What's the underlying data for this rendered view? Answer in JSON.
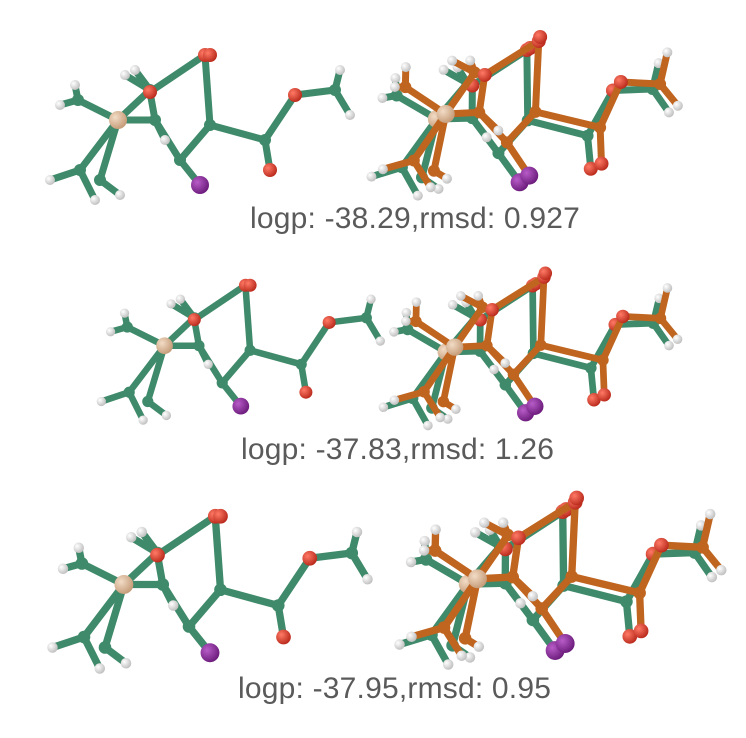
{
  "colors": {
    "carbon": "#3f8a6a",
    "carbon_overlay": "#c0651f",
    "oxygen": "#d63a26",
    "hydrogen": "#e6e6e6",
    "silicon": "#d9b99b",
    "iodine": "#8a2a9a",
    "caption": "#5a5a5a"
  },
  "rows": [
    {
      "caption": "logp: -38.29,rmsd: 0.927"
    },
    {
      "caption": "logp: -37.83,rmsd: 1.26"
    },
    {
      "caption": "logp: -37.95,rmsd: 0.95"
    }
  ]
}
